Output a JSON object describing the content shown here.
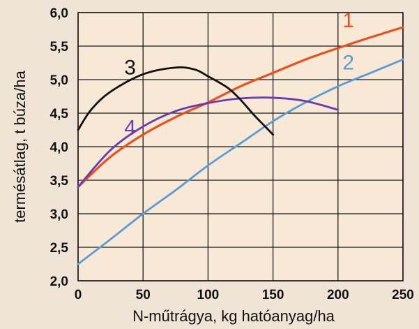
{
  "chart_data": {
    "type": "line",
    "title": "",
    "xlabel": "N-műtrágya, kg hatóanyag/ha",
    "ylabel": "termésátlag, t búza/ha",
    "xlim": [
      0,
      250
    ],
    "ylim": [
      2.0,
      6.0
    ],
    "x_ticks": [
      "0",
      "50",
      "100",
      "150",
      "200",
      "250"
    ],
    "y_ticks": [
      "2,0",
      "2,5",
      "3,0",
      "3,5",
      "4,0",
      "4,5",
      "5,0",
      "5,5",
      "6,0"
    ],
    "grid": true,
    "legend": "none",
    "plot_background": "#f7e9d6",
    "series": [
      {
        "name": "1",
        "color": "#e8501e",
        "x": [
          0,
          25,
          50,
          75,
          100,
          125,
          150,
          175,
          200,
          225,
          250
        ],
        "y": [
          3.4,
          3.85,
          4.18,
          4.44,
          4.66,
          4.9,
          5.1,
          5.3,
          5.47,
          5.63,
          5.78
        ]
      },
      {
        "name": "2",
        "color": "#5b9bd5",
        "x": [
          0,
          25,
          50,
          75,
          100,
          125,
          150,
          175,
          200,
          225,
          250
        ],
        "y": [
          2.25,
          2.62,
          3.0,
          3.35,
          3.72,
          4.05,
          4.38,
          4.66,
          4.9,
          5.1,
          5.3
        ]
      },
      {
        "name": "3",
        "color": "#111111",
        "x": [
          0,
          10,
          25,
          50,
          75,
          90,
          100,
          115,
          125,
          135,
          145,
          150
        ],
        "y": [
          4.25,
          4.55,
          4.82,
          5.08,
          5.18,
          5.15,
          5.05,
          4.88,
          4.7,
          4.48,
          4.28,
          4.18
        ]
      },
      {
        "name": "4",
        "color": "#6a3bb0",
        "x": [
          0,
          25,
          50,
          75,
          100,
          125,
          150,
          175,
          200
        ],
        "y": [
          3.4,
          3.95,
          4.3,
          4.53,
          4.65,
          4.72,
          4.73,
          4.68,
          4.55
        ]
      }
    ]
  }
}
